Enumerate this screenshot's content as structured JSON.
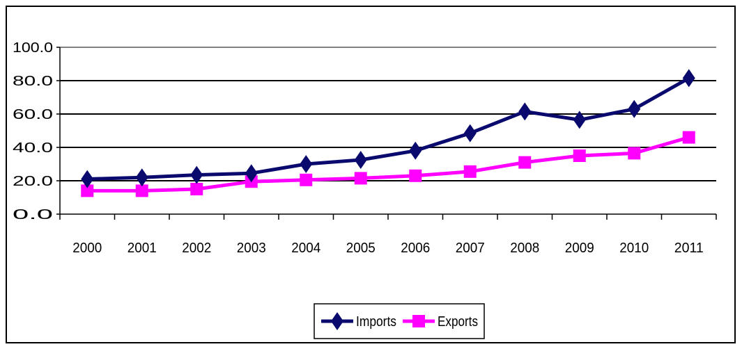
{
  "chart_data": {
    "type": "line",
    "categories": [
      "2000",
      "2001",
      "2002",
      "2003",
      "2004",
      "2005",
      "2006",
      "2007",
      "2008",
      "2009",
      "2010",
      "2011"
    ],
    "series": [
      {
        "name": "Imports",
        "color": "#0a0a6e",
        "marker": "diamond",
        "values": [
          21.0,
          22.0,
          23.5,
          24.5,
          30.0,
          32.5,
          38.0,
          48.5,
          61.5,
          56.5,
          63.0,
          81.5
        ]
      },
      {
        "name": "Exports",
        "color": "#ff00ff",
        "marker": "square",
        "values": [
          14.0,
          14.0,
          15.0,
          19.5,
          20.5,
          21.5,
          23.0,
          25.5,
          31.0,
          35.0,
          36.5,
          46.0
        ]
      }
    ],
    "yticks": [
      "0.0",
      "20.0",
      "40.0",
      "60.0",
      "80.0",
      "100.0"
    ],
    "ylim": [
      0,
      100
    ],
    "grid": true,
    "legend": "bottom-center"
  }
}
